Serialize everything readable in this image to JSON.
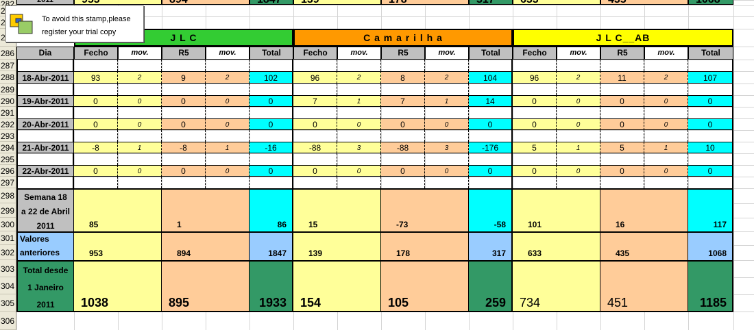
{
  "stamp": {
    "line1": "To avoid this stamp,please",
    "line2": "register your trial copy"
  },
  "row_numbers": [
    "282",
    "283",
    "284",
    "285",
    "286",
    "287",
    "288",
    "289",
    "290",
    "291",
    "292",
    "293",
    "294",
    "295",
    "296",
    "297",
    "298",
    "299",
    "300",
    "301",
    "302",
    "303",
    "304",
    "305",
    "306"
  ],
  "top_partial": {
    "a": "2011",
    "b": "953",
    "c": "894",
    "d": "1847",
    "e": "139",
    "f": "178",
    "g": "317",
    "h": "633",
    "i": "435",
    "j": "1068"
  },
  "groups": [
    {
      "name": "J  L  C",
      "color": "#33cc33"
    },
    {
      "name": "C a m a r i l h a",
      "color": "#ff9900"
    },
    {
      "name": "J L C__AB",
      "color": "#ffff00"
    }
  ],
  "headers": {
    "dia": "Dia",
    "fecho": "Fecho",
    "mov": "mov.",
    "r5": "R5",
    "total": "Total"
  },
  "days": [
    {
      "label": "18-Abr-2011",
      "vals": [
        [
          "93",
          "2",
          "9",
          "2",
          "102"
        ],
        [
          "96",
          "2",
          "8",
          "2",
          "104"
        ],
        [
          "96",
          "2",
          "11",
          "2",
          "107"
        ]
      ]
    },
    {
      "label": "19-Abr-2011",
      "vals": [
        [
          "0",
          "0",
          "0",
          "0",
          "0"
        ],
        [
          "7",
          "1",
          "7",
          "1",
          "14"
        ],
        [
          "0",
          "0",
          "0",
          "0",
          "0"
        ]
      ]
    },
    {
      "label": "20-Abr-2011",
      "vals": [
        [
          "0",
          "0",
          "0",
          "0",
          "0"
        ],
        [
          "0",
          "0",
          "0",
          "0",
          "0"
        ],
        [
          "0",
          "0",
          "0",
          "0",
          "0"
        ]
      ]
    },
    {
      "label": "21-Abr-2011",
      "vals": [
        [
          "-8",
          "1",
          "-8",
          "1",
          "-16"
        ],
        [
          "-88",
          "3",
          "-88",
          "3",
          "-176"
        ],
        [
          "5",
          "1",
          "5",
          "1",
          "10"
        ]
      ]
    },
    {
      "label": "22-Abr-2011",
      "vals": [
        [
          "0",
          "0",
          "0",
          "0",
          "0"
        ],
        [
          "0",
          "0",
          "0",
          "0",
          "0"
        ],
        [
          "0",
          "0",
          "0",
          "0",
          "0"
        ]
      ]
    }
  ],
  "semana": {
    "label1": "Semana 18",
    "label2": "a 22 de Abril",
    "label3": "2011",
    "vals": [
      [
        "85",
        "1",
        "86"
      ],
      [
        "15",
        "-73",
        "-58"
      ],
      [
        "101",
        "16",
        "117"
      ]
    ]
  },
  "anteriores": {
    "label1": "Valores",
    "label2": "anteriores",
    "vals": [
      [
        "953",
        "894",
        "1847"
      ],
      [
        "139",
        "178",
        "317"
      ],
      [
        "633",
        "435",
        "1068"
      ]
    ]
  },
  "total": {
    "label1": "Total desde",
    "label2": "1 Janeiro",
    "label3": "2011",
    "vals": [
      [
        "1038",
        "895",
        "1933"
      ],
      [
        "154",
        "105",
        "259"
      ],
      [
        "734",
        "451",
        "1185"
      ]
    ]
  },
  "colors": {
    "yellow": "#ffff99",
    "peach": "#ffcc99",
    "cyan": "#00ffff",
    "light_blue": "#99ccff",
    "dark_green": "#339966",
    "gray": "#c0c0c0"
  }
}
